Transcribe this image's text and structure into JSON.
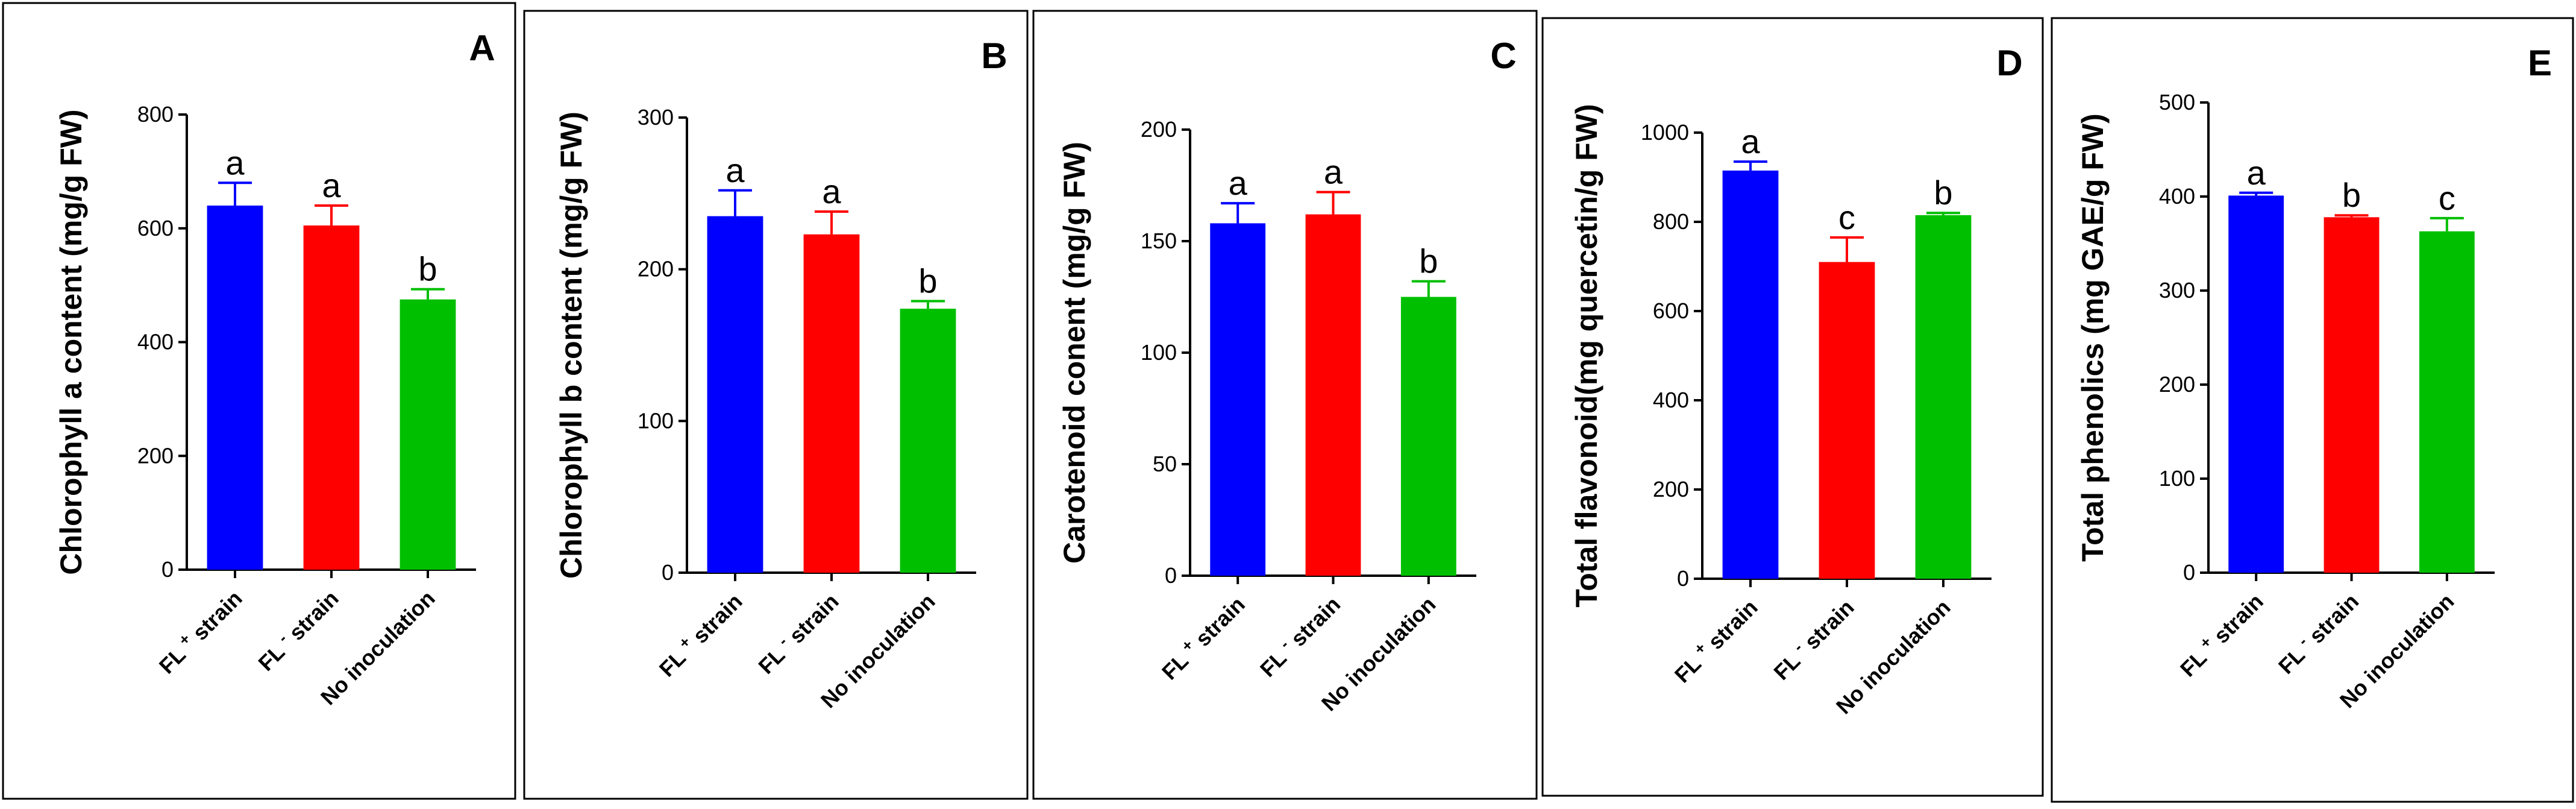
{
  "chart_data": [
    {
      "panel": "A",
      "type": "bar",
      "categories": [
        "FL + strain",
        "FL - strain",
        "No inoculation"
      ],
      "category_parts": [
        {
          "prefix": "FL",
          "sup": "+",
          "suffix": "strain"
        },
        {
          "prefix": "FL",
          "sup": "-",
          "suffix": "strain"
        },
        {
          "prefix": "",
          "sup": "",
          "suffix": "No inoculation"
        }
      ],
      "values": [
        640,
        605,
        475
      ],
      "errors": [
        40,
        35,
        18
      ],
      "significance": [
        "a",
        "a",
        "b"
      ],
      "colors": [
        "#0000ff",
        "#ff0000",
        "#00bf00"
      ],
      "ylabel": "Chlorophyll a content (mg/g FW)",
      "ylim": [
        0,
        800
      ],
      "yticks": [
        0,
        200,
        400,
        600,
        800
      ]
    },
    {
      "panel": "B",
      "type": "bar",
      "categories": [
        "FL + strain",
        "FL - strain",
        "No inoculation"
      ],
      "category_parts": [
        {
          "prefix": "FL",
          "sup": "+",
          "suffix": "strain"
        },
        {
          "prefix": "FL",
          "sup": "-",
          "suffix": "strain"
        },
        {
          "prefix": "",
          "sup": "",
          "suffix": "No inoculation"
        }
      ],
      "values": [
        235,
        223,
        174
      ],
      "errors": [
        17,
        15,
        5
      ],
      "significance": [
        "a",
        "a",
        "b"
      ],
      "colors": [
        "#0000ff",
        "#ff0000",
        "#00bf00"
      ],
      "ylabel": "Chlorophyll b content (mg/g FW)",
      "ylim": [
        0,
        300
      ],
      "yticks": [
        0,
        100,
        200,
        300
      ]
    },
    {
      "panel": "C",
      "type": "bar",
      "categories": [
        "FL + strain",
        "FL - strain",
        "No inoculation"
      ],
      "category_parts": [
        {
          "prefix": "FL",
          "sup": "+",
          "suffix": "strain"
        },
        {
          "prefix": "FL",
          "sup": "-",
          "suffix": "strain"
        },
        {
          "prefix": "",
          "sup": "",
          "suffix": "No inoculation"
        }
      ],
      "values": [
        158,
        162,
        125
      ],
      "errors": [
        9,
        10,
        7
      ],
      "significance": [
        "a",
        "a",
        "b"
      ],
      "colors": [
        "#0000ff",
        "#ff0000",
        "#00bf00"
      ],
      "ylabel": "Carotenoid conent (mg/g FW)",
      "ylim": [
        0,
        200
      ],
      "yticks": [
        0,
        50,
        100,
        150,
        200
      ]
    },
    {
      "panel": "D",
      "type": "bar",
      "categories": [
        "FL + strain",
        "FL - strain",
        "No inoculation"
      ],
      "category_parts": [
        {
          "prefix": "FL",
          "sup": "+",
          "suffix": "strain"
        },
        {
          "prefix": "FL",
          "sup": "-",
          "suffix": "strain"
        },
        {
          "prefix": "",
          "sup": "",
          "suffix": "No inoculation"
        }
      ],
      "values": [
        915,
        710,
        815
      ],
      "errors": [
        20,
        55,
        5
      ],
      "significance": [
        "a",
        "c",
        "b"
      ],
      "colors": [
        "#0000ff",
        "#ff0000",
        "#00bf00"
      ],
      "ylabel": "Total flavonoid(mg quercetin/g FW)",
      "ylim": [
        0,
        1000
      ],
      "yticks": [
        0,
        200,
        400,
        600,
        800,
        1000
      ]
    },
    {
      "panel": "E",
      "type": "bar",
      "categories": [
        "FL + strain",
        "FL - strain",
        "No inoculation"
      ],
      "category_parts": [
        {
          "prefix": "FL",
          "sup": "+",
          "suffix": "strain"
        },
        {
          "prefix": "FL",
          "sup": "-",
          "suffix": "strain"
        },
        {
          "prefix": "",
          "sup": "",
          "suffix": "No inoculation"
        }
      ],
      "values": [
        401,
        378,
        363
      ],
      "errors": [
        3,
        2,
        14
      ],
      "significance": [
        "a",
        "b",
        "c"
      ],
      "colors": [
        "#0000ff",
        "#ff0000",
        "#00bf00"
      ],
      "ylabel": "Total phenolics (mg GAE/g FW)",
      "ylim": [
        0,
        500
      ],
      "yticks": [
        0,
        100,
        200,
        300,
        400,
        500
      ]
    }
  ]
}
